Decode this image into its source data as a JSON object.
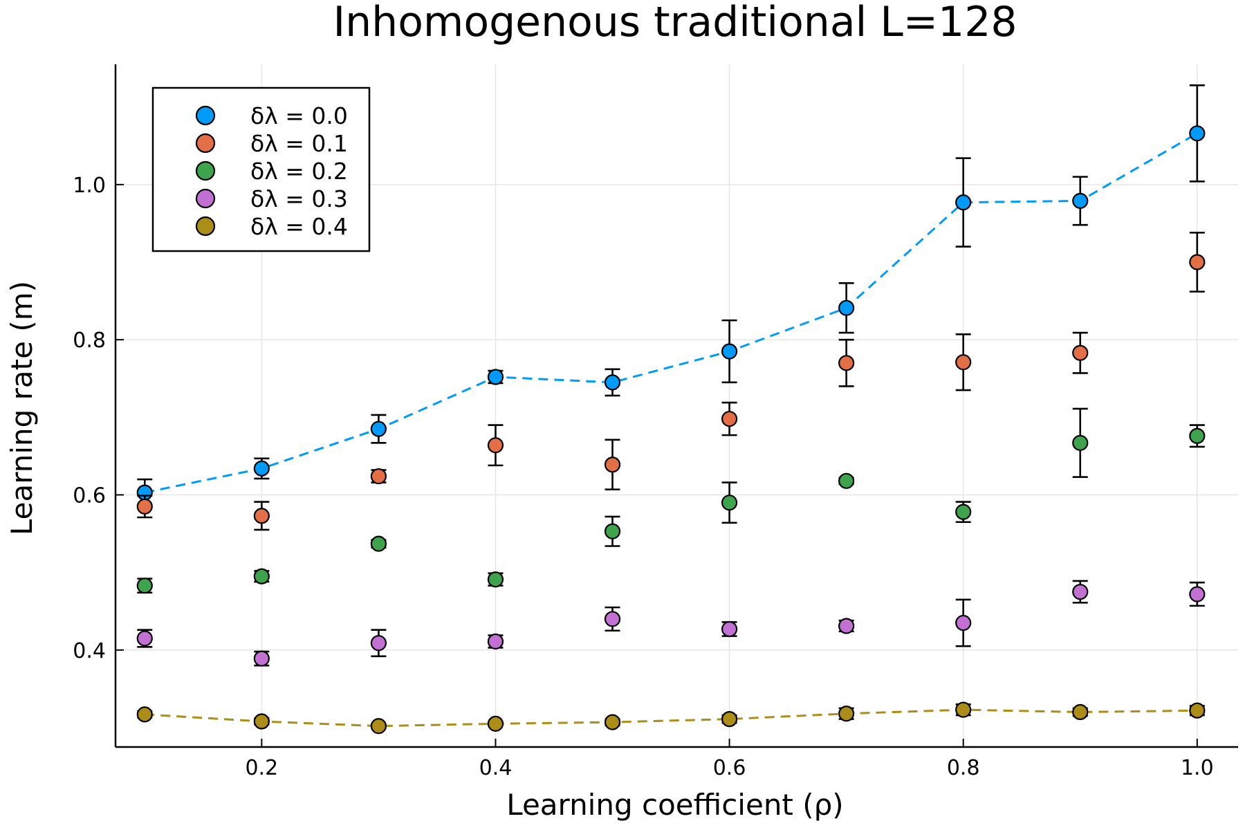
{
  "chart_data": {
    "type": "scatter",
    "title": "Inhomogenous traditional L=128",
    "xlabel": "Learning coefficient (ρ)",
    "ylabel": "Learning rate (m)",
    "xlim": [
      0.075,
      1.035
    ],
    "ylim": [
      0.275,
      1.155
    ],
    "xticks": [
      0.2,
      0.4,
      0.6,
      0.8,
      1.0
    ],
    "xtick_labels": [
      "0.2",
      "0.4",
      "0.6",
      "0.8",
      "1.0"
    ],
    "yticks": [
      0.4,
      0.6,
      0.8,
      1.0
    ],
    "ytick_labels": [
      "0.4",
      "0.6",
      "0.8",
      "1.0"
    ],
    "grid": true,
    "legend_position": "top-left",
    "x": [
      0.1,
      0.2,
      0.3,
      0.4,
      0.5,
      0.6,
      0.7,
      0.8,
      0.9,
      1.0
    ],
    "series": [
      {
        "name": "δλ = 0.0",
        "color": "#009af9",
        "dashed_line": true,
        "values": [
          0.603,
          0.634,
          0.685,
          0.752,
          0.745,
          0.785,
          0.841,
          0.977,
          0.979,
          1.066
        ],
        "errors": [
          0.017,
          0.013,
          0.018,
          0.008,
          0.017,
          0.04,
          0.032,
          0.057,
          0.031,
          0.062
        ]
      },
      {
        "name": "δλ = 0.1",
        "color": "#e26f46",
        "dashed_line": false,
        "values": [
          0.585,
          0.573,
          0.624,
          0.664,
          0.639,
          0.698,
          0.77,
          0.771,
          0.783,
          0.9
        ],
        "errors": [
          0.014,
          0.018,
          0.008,
          0.026,
          0.032,
          0.021,
          0.03,
          0.036,
          0.026,
          0.038
        ]
      },
      {
        "name": "δλ = 0.2",
        "color": "#3da44d",
        "dashed_line": false,
        "values": [
          0.483,
          0.495,
          0.537,
          0.491,
          0.553,
          0.59,
          0.618,
          0.578,
          0.667,
          0.676
        ],
        "errors": [
          0.009,
          0.007,
          0.005,
          0.008,
          0.019,
          0.026,
          0.004,
          0.013,
          0.044,
          0.014
        ]
      },
      {
        "name": "δλ = 0.3",
        "color": "#c271d2",
        "dashed_line": false,
        "values": [
          0.415,
          0.389,
          0.409,
          0.411,
          0.44,
          0.427,
          0.431,
          0.435,
          0.475,
          0.472
        ],
        "errors": [
          0.011,
          0.009,
          0.017,
          0.008,
          0.015,
          0.009,
          0.007,
          0.03,
          0.014,
          0.015
        ]
      },
      {
        "name": "δλ = 0.4",
        "color": "#ac8d18",
        "dashed_line": true,
        "values": [
          0.317,
          0.308,
          0.302,
          0.305,
          0.307,
          0.311,
          0.318,
          0.323,
          0.32,
          0.322
        ],
        "errors": [
          0.004,
          0.004,
          0.003,
          0.003,
          0.004,
          0.005,
          0.007,
          0.007,
          0.005,
          0.006
        ]
      }
    ]
  }
}
